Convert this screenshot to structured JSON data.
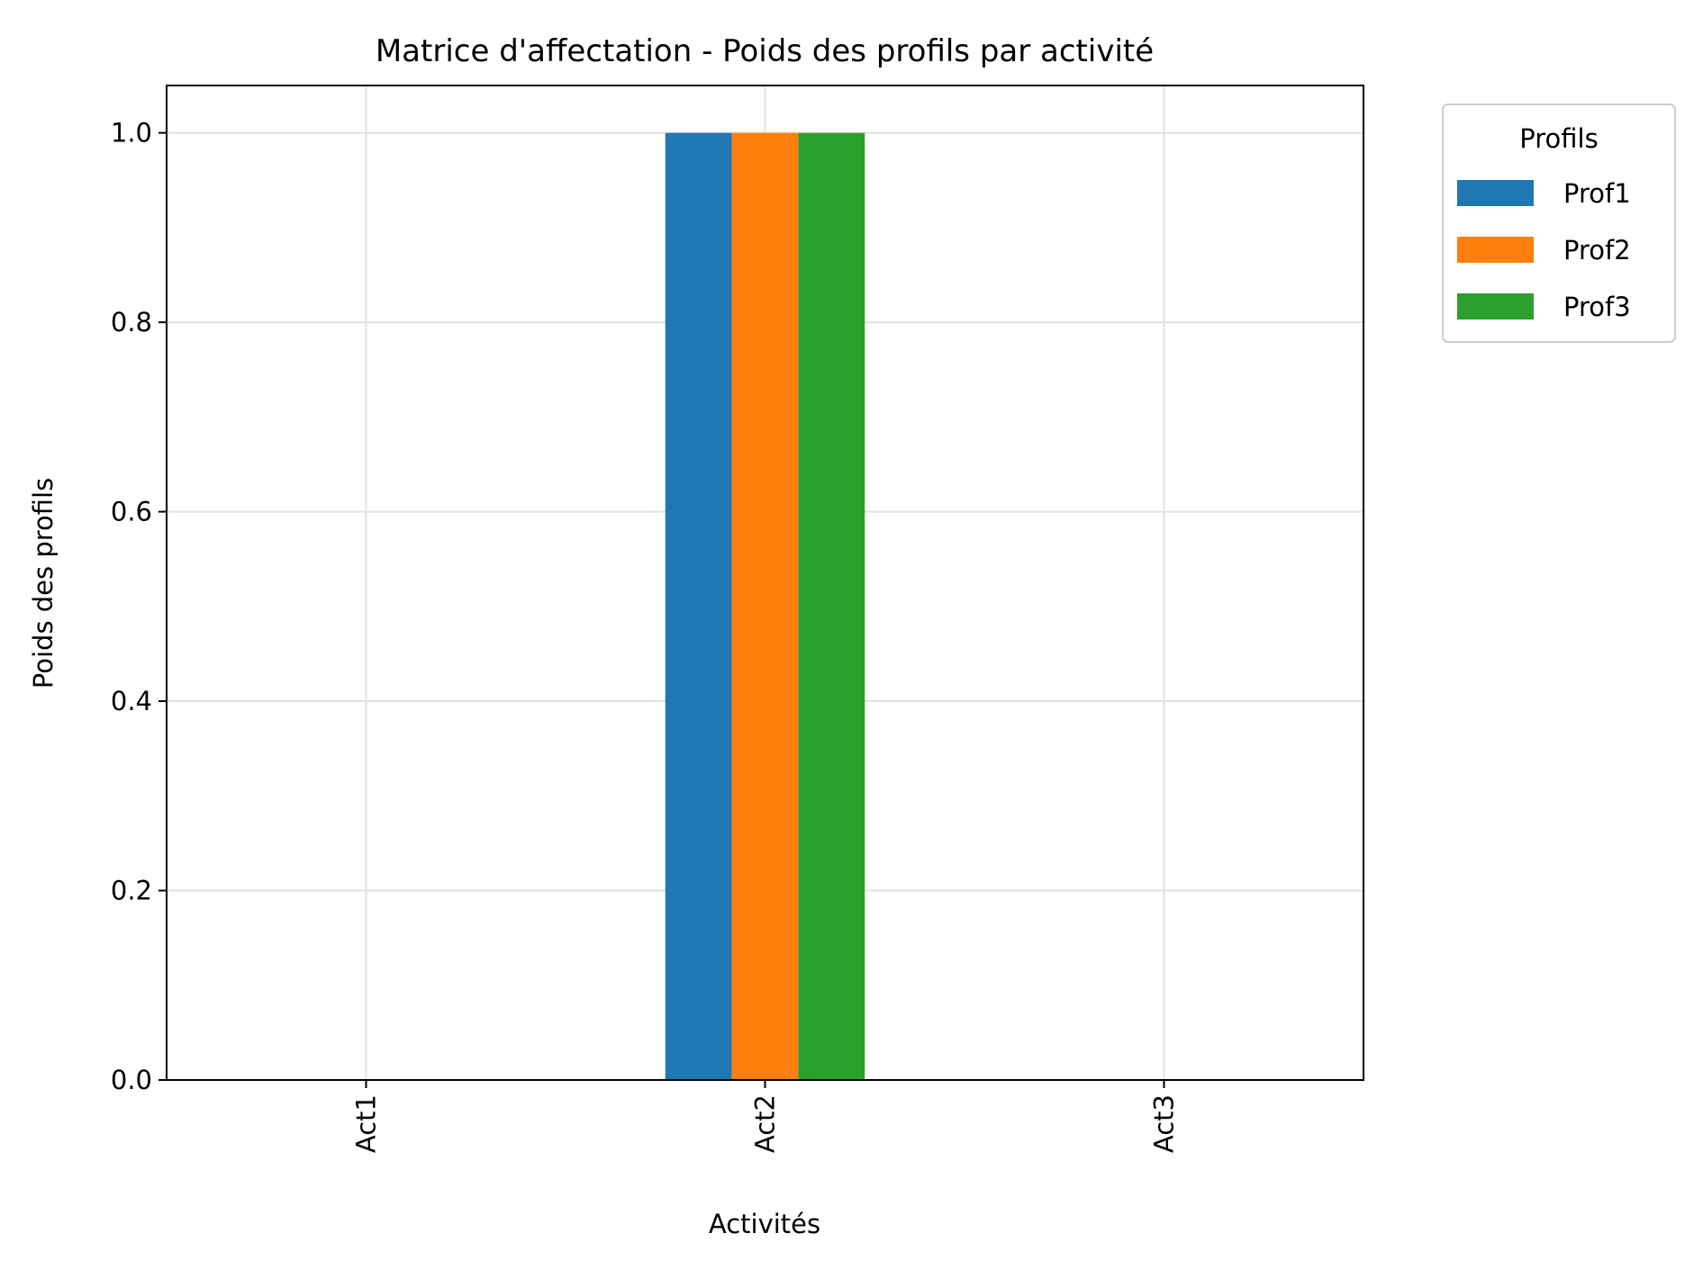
{
  "chart_data": {
    "type": "bar",
    "title": "Matrice d'affectation - Poids des profils par activité",
    "xlabel": "Activités",
    "ylabel": "Poids des profils",
    "categories": [
      "Act1",
      "Act2",
      "Act3"
    ],
    "series": [
      {
        "name": "Prof1",
        "values": [
          0,
          1.0,
          0
        ],
        "color": "#1f77b4"
      },
      {
        "name": "Prof2",
        "values": [
          0,
          1.0,
          0
        ],
        "color": "#ff7f0e"
      },
      {
        "name": "Prof3",
        "values": [
          0,
          1.0,
          0
        ],
        "color": "#2ca02c"
      }
    ],
    "ylim": [
      0,
      1.05
    ],
    "yticks": [
      "0.0",
      "0.2",
      "0.4",
      "0.6",
      "0.8",
      "1.0"
    ],
    "grid": true,
    "legend": {
      "title": "Profils",
      "placement": "outside-top-right"
    }
  }
}
